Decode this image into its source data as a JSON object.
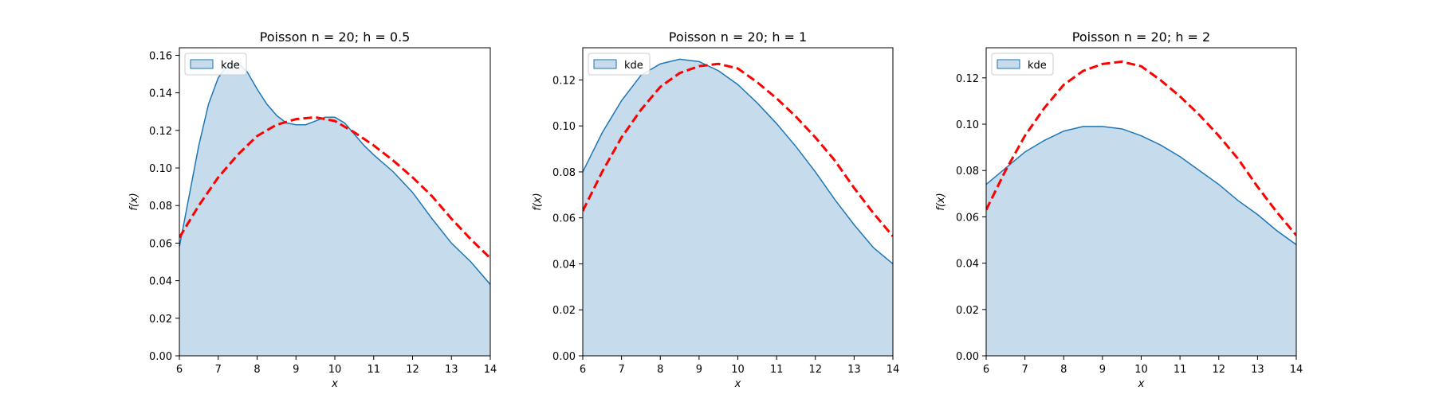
{
  "chart_data": [
    {
      "type": "area",
      "title": "Poisson n = 20; h = 0.5",
      "xlabel": "x",
      "ylabel": "f(x)",
      "xlim": [
        6,
        14
      ],
      "ylim": [
        0,
        0.164
      ],
      "xticks": [
        6,
        7,
        8,
        9,
        10,
        11,
        12,
        13,
        14
      ],
      "yticks": [
        0.0,
        0.02,
        0.04,
        0.06,
        0.08,
        0.1,
        0.12,
        0.14,
        0.16
      ],
      "ytick_decimals": 2,
      "legend": {
        "entries": [
          "kde"
        ],
        "position": "upper-left"
      },
      "series": [
        {
          "name": "kde",
          "style": "filled-area",
          "x": [
            6.0,
            6.25,
            6.5,
            6.75,
            7.0,
            7.25,
            7.5,
            7.75,
            8.0,
            8.25,
            8.5,
            8.75,
            9.0,
            9.25,
            9.5,
            9.75,
            10.0,
            10.25,
            10.5,
            10.75,
            11.0,
            11.5,
            12.0,
            12.5,
            13.0,
            13.5,
            14.0
          ],
          "y": [
            0.058,
            0.085,
            0.112,
            0.134,
            0.148,
            0.155,
            0.156,
            0.151,
            0.142,
            0.134,
            0.128,
            0.124,
            0.123,
            0.123,
            0.125,
            0.127,
            0.127,
            0.124,
            0.118,
            0.112,
            0.107,
            0.098,
            0.087,
            0.073,
            0.06,
            0.05,
            0.038
          ]
        },
        {
          "style": "dashed-line",
          "x": [
            6,
            6.5,
            7,
            7.5,
            8,
            8.5,
            9,
            9.5,
            10,
            10.5,
            11,
            11.5,
            12,
            12.5,
            13,
            13.5,
            14
          ],
          "y": [
            0.063,
            0.08,
            0.095,
            0.107,
            0.117,
            0.123,
            0.126,
            0.127,
            0.125,
            0.119,
            0.112,
            0.104,
            0.095,
            0.085,
            0.073,
            0.062,
            0.052
          ]
        }
      ]
    },
    {
      "type": "area",
      "title": "Poisson n = 20; h = 1",
      "xlabel": "x",
      "ylabel": "f(x)",
      "xlim": [
        6,
        14
      ],
      "ylim": [
        0,
        0.134
      ],
      "xticks": [
        6,
        7,
        8,
        9,
        10,
        11,
        12,
        13,
        14
      ],
      "yticks": [
        0.0,
        0.02,
        0.04,
        0.06,
        0.08,
        0.1,
        0.12
      ],
      "ytick_decimals": 2,
      "legend": {
        "entries": [
          "kde"
        ],
        "position": "upper-left"
      },
      "series": [
        {
          "name": "kde",
          "style": "filled-area",
          "x": [
            6,
            6.5,
            7,
            7.5,
            8,
            8.5,
            9,
            9.5,
            10,
            10.5,
            11,
            11.5,
            12,
            12.5,
            13,
            13.5,
            14
          ],
          "y": [
            0.08,
            0.097,
            0.111,
            0.122,
            0.127,
            0.129,
            0.128,
            0.124,
            0.118,
            0.11,
            0.101,
            0.091,
            0.08,
            0.068,
            0.057,
            0.047,
            0.04
          ]
        },
        {
          "style": "dashed-line",
          "x": [
            6,
            6.5,
            7,
            7.5,
            8,
            8.5,
            9,
            9.5,
            10,
            10.5,
            11,
            11.5,
            12,
            12.5,
            13,
            13.5,
            14
          ],
          "y": [
            0.063,
            0.08,
            0.095,
            0.107,
            0.117,
            0.123,
            0.126,
            0.127,
            0.125,
            0.119,
            0.112,
            0.104,
            0.095,
            0.085,
            0.073,
            0.062,
            0.052
          ]
        }
      ]
    },
    {
      "type": "area",
      "title": "Poisson n = 20; h = 2",
      "xlabel": "x",
      "ylabel": "f(x)",
      "xlim": [
        6,
        14
      ],
      "ylim": [
        0,
        0.133
      ],
      "xticks": [
        6,
        7,
        8,
        9,
        10,
        11,
        12,
        13,
        14
      ],
      "yticks": [
        0.0,
        0.02,
        0.04,
        0.06,
        0.08,
        0.1,
        0.12
      ],
      "ytick_decimals": 2,
      "legend": {
        "entries": [
          "kde"
        ],
        "position": "upper-left"
      },
      "series": [
        {
          "name": "kde",
          "style": "filled-area",
          "x": [
            6,
            6.5,
            7,
            7.5,
            8,
            8.5,
            9,
            9.5,
            10,
            10.5,
            11,
            11.5,
            12,
            12.5,
            13,
            13.5,
            14
          ],
          "y": [
            0.074,
            0.081,
            0.088,
            0.093,
            0.097,
            0.099,
            0.099,
            0.098,
            0.095,
            0.091,
            0.086,
            0.08,
            0.074,
            0.067,
            0.061,
            0.054,
            0.048
          ]
        },
        {
          "style": "dashed-line",
          "x": [
            6,
            6.5,
            7,
            7.5,
            8,
            8.5,
            9,
            9.5,
            10,
            10.5,
            11,
            11.5,
            12,
            12.5,
            13,
            13.5,
            14
          ],
          "y": [
            0.063,
            0.08,
            0.095,
            0.107,
            0.117,
            0.123,
            0.126,
            0.127,
            0.125,
            0.119,
            0.112,
            0.104,
            0.095,
            0.085,
            0.073,
            0.062,
            0.052
          ]
        }
      ]
    }
  ],
  "colors": {
    "kde_line": "#1f77b4",
    "kde_fill": "#c6dbec",
    "reference_line": "#ff0000",
    "axes": "#000000",
    "legend_border": "#cccccc"
  }
}
